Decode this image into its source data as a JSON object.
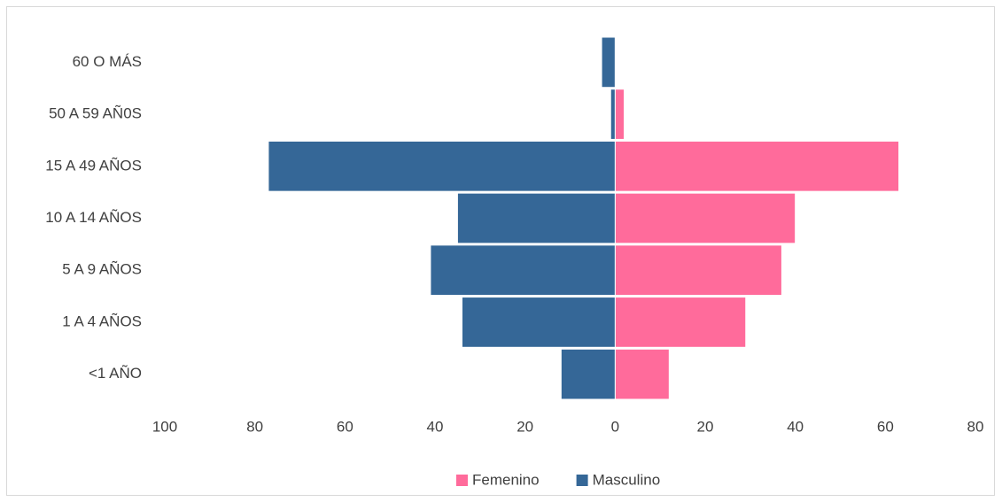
{
  "chart_data": {
    "type": "bar",
    "orientation": "horizontal",
    "stacked": false,
    "categories": [
      "60 O MÁS",
      "50 A 59 AÑ0S",
      "15 A 49 AÑOS",
      "10 A 14 AÑOS",
      "5 A 9 AÑOS",
      "1 A 4 AÑOS",
      "<1 AÑO"
    ],
    "series": [
      {
        "name": "Femenino",
        "color": "#ff6b9b",
        "values": [
          0,
          2,
          63,
          40,
          37,
          29,
          12
        ]
      },
      {
        "name": "Masculino",
        "color": "#356797",
        "values": [
          -3,
          -1,
          -77,
          -35,
          -41,
          -34,
          -12
        ]
      }
    ],
    "xlim": [
      -100,
      80
    ],
    "xticks": [
      {
        "value": -100,
        "label": "100"
      },
      {
        "value": -80,
        "label": "80"
      },
      {
        "value": -60,
        "label": "60"
      },
      {
        "value": -40,
        "label": "40"
      },
      {
        "value": -20,
        "label": "20"
      },
      0,
      20,
      40,
      60,
      80
    ],
    "legend": "bottom"
  }
}
